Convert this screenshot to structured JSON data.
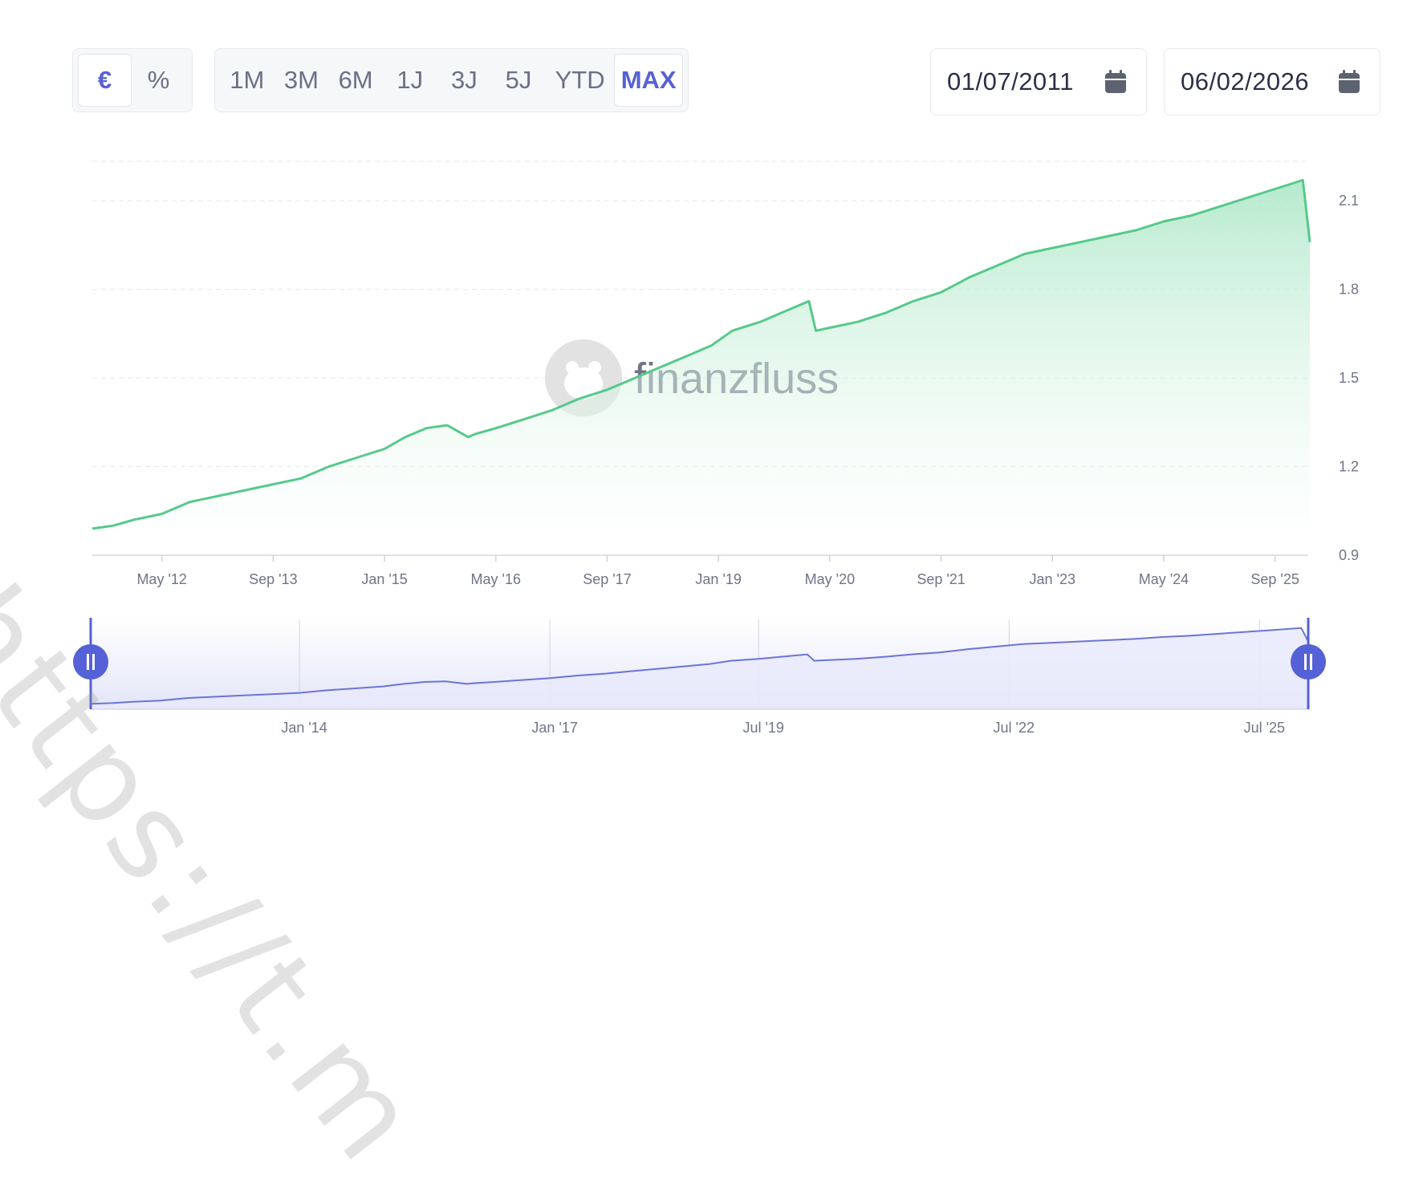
{
  "controls": {
    "currency_options": [
      {
        "label": "€",
        "active": true
      },
      {
        "label": "%",
        "active": false
      }
    ],
    "range_options": [
      {
        "label": "1M",
        "active": false
      },
      {
        "label": "3M",
        "active": false
      },
      {
        "label": "6M",
        "active": false
      },
      {
        "label": "1J",
        "active": false
      },
      {
        "label": "3J",
        "active": false
      },
      {
        "label": "5J",
        "active": false
      },
      {
        "label": "YTD",
        "active": false
      },
      {
        "label": "MAX",
        "active": true
      }
    ],
    "start_date": "01/07/2011",
    "end_date": "06/02/2026",
    "calendar_icon": "calendar-icon"
  },
  "watermark": {
    "brand": "finanzfluss",
    "logo_icon": "hippo-icon",
    "overlay_url": "https://t.m"
  },
  "colors": {
    "accent": "#5561d6",
    "line": "#56c98a",
    "area": "#b9ebcf",
    "navigator_line": "#6b74d8",
    "navigator_fill": "#e6e8fa"
  },
  "chart_data": {
    "type": "area",
    "title": "",
    "xlabel": "",
    "ylabel": "",
    "ylim": [
      0.9,
      2.25
    ],
    "yticks": [
      0.9,
      1.2,
      1.5,
      1.8,
      2.1
    ],
    "xtick_labels": [
      "May '12",
      "Sep '13",
      "Jan '15",
      "May '16",
      "Sep '17",
      "Jan '19",
      "May '20",
      "Sep '21",
      "Jan '23",
      "May '24",
      "Sep '25"
    ],
    "xtick_dates": [
      "2012-05",
      "2013-09",
      "2015-01",
      "2016-05",
      "2017-09",
      "2019-01",
      "2020-05",
      "2021-09",
      "2023-01",
      "2024-05",
      "2025-09"
    ],
    "grid": true,
    "series": [
      {
        "x": [
          "2011-07",
          "2011-10",
          "2012-01",
          "2012-05",
          "2012-09",
          "2013-01",
          "2013-05",
          "2013-09",
          "2014-01",
          "2014-05",
          "2014-09",
          "2015-01",
          "2015-04",
          "2015-07",
          "2015-10",
          "2016-01",
          "2016-02",
          "2016-05",
          "2016-09",
          "2017-01",
          "2017-05",
          "2017-09",
          "2018-01",
          "2018-05",
          "2018-09",
          "2018-12",
          "2019-03",
          "2019-07",
          "2019-11",
          "2020-02",
          "2020-03",
          "2020-05",
          "2020-09",
          "2021-01",
          "2021-05",
          "2021-09",
          "2022-01",
          "2022-05",
          "2022-09",
          "2023-01",
          "2023-05",
          "2023-09",
          "2024-01",
          "2024-05",
          "2024-09",
          "2025-01",
          "2025-05",
          "2025-09",
          "2026-01",
          "2026-02"
        ],
        "values": [
          0.99,
          1.0,
          1.02,
          1.04,
          1.08,
          1.1,
          1.12,
          1.14,
          1.16,
          1.2,
          1.23,
          1.26,
          1.3,
          1.33,
          1.34,
          1.3,
          1.31,
          1.33,
          1.36,
          1.39,
          1.43,
          1.46,
          1.5,
          1.54,
          1.58,
          1.61,
          1.66,
          1.69,
          1.73,
          1.76,
          1.66,
          1.67,
          1.69,
          1.72,
          1.76,
          1.79,
          1.84,
          1.88,
          1.92,
          1.94,
          1.96,
          1.98,
          2.0,
          2.03,
          2.05,
          2.08,
          2.11,
          2.14,
          2.17,
          1.96
        ]
      }
    ],
    "navigator": {
      "xtick_labels": [
        "Jan '14",
        "Jan '17",
        "Jul '19",
        "Jul '22",
        "Jul '25"
      ],
      "xtick_dates": [
        "2014-01",
        "2017-01",
        "2019-07",
        "2022-07",
        "2025-07"
      ],
      "range_start": "2011-07",
      "range_end": "2026-02"
    }
  }
}
